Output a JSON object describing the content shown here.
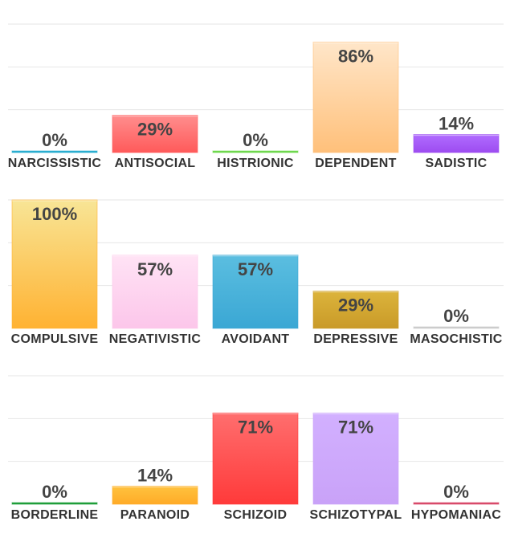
{
  "chart_data": [
    {
      "type": "bar",
      "ylim": [
        0,
        100
      ],
      "grid": true,
      "categories": [
        "NARCISSISTIC",
        "ANTISOCIAL",
        "HISTRIONIC",
        "DEPENDENT",
        "SADISTIC"
      ],
      "values": [
        0,
        29,
        0,
        86,
        14
      ],
      "value_labels": [
        "0%",
        "29%",
        "0%",
        "86%",
        "14%"
      ],
      "colors": [
        [
          "#2aaed0",
          "#2aaed0"
        ],
        [
          "#ff8e8e",
          "#ff5a5a"
        ],
        [
          "#6fd84f",
          "#6fd84f"
        ],
        [
          "#ffe6c9",
          "#ffc07a"
        ],
        [
          "#b06cff",
          "#9d4cf0"
        ]
      ]
    },
    {
      "type": "bar",
      "ylim": [
        0,
        100
      ],
      "grid": true,
      "categories": [
        "COMPULSIVE",
        "NEGATIVISTIC",
        "AVOIDANT",
        "DEPRESSIVE",
        "MASOCHISTIC"
      ],
      "values": [
        100,
        57,
        57,
        29,
        0
      ],
      "value_labels": [
        "100%",
        "57%",
        "57%",
        "29%",
        "0%"
      ],
      "colors": [
        [
          "#f8e596",
          "#ffb232"
        ],
        [
          "#ffe3f5",
          "#fcc6ea"
        ],
        [
          "#5bbee0",
          "#3aa7d4"
        ],
        [
          "#dcb43c",
          "#c99a28"
        ],
        [
          "#cccccc",
          "#cccccc"
        ]
      ]
    },
    {
      "type": "bar",
      "ylim": [
        0,
        100
      ],
      "grid": true,
      "categories": [
        "BORDERLINE",
        "PARANOID",
        "SCHIZOID",
        "SCHIZOTYPAL",
        "HYPOMANIAC"
      ],
      "values": [
        0,
        14,
        71,
        71,
        0
      ],
      "value_labels": [
        "0%",
        "14%",
        "71%",
        "71%",
        "0%"
      ],
      "colors": [
        [
          "#1f9e3a",
          "#1f9e3a"
        ],
        [
          "#ffc23e",
          "#ffab28"
        ],
        [
          "#ff6e6e",
          "#ff3a3a"
        ],
        [
          "#d2b0ff",
          "#c9a2f8"
        ],
        [
          "#d84a6a",
          "#d84a6a"
        ]
      ]
    }
  ]
}
